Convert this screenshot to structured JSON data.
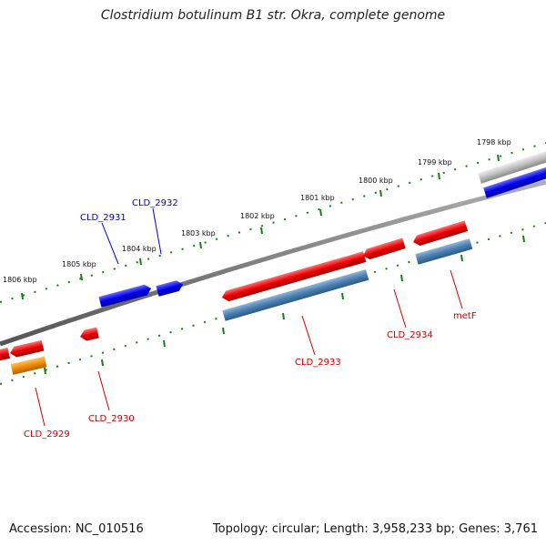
{
  "title": "Clostridium botulinum B1 str. Okra, complete genome",
  "footer": {
    "accession": "Accession: NC_010516",
    "summary": "Topology: circular; Length: 3,958,233 bp; Genes: 3,761"
  },
  "colors": {
    "backbone": "#808080",
    "ticks": "#1a7a1a",
    "gene_red": "#e60000",
    "gene_blue": "#0000e6",
    "gene_orange": "#f08c00",
    "gene_steel": "#4a7fb0",
    "gene_gray": "#c0c0c0",
    "label_red": "#cc0000",
    "label_blue": "#0000cc"
  },
  "scale_labels": [
    "1806 kbp",
    "1805 kbp",
    "1804 kbp",
    "1803 kbp",
    "1802 kbp",
    "1801 kbp",
    "1800 kbp",
    "1799 kbp",
    "1798 kbp"
  ],
  "gene_labels": [
    "CLD_2929",
    "CLD_2930",
    "CLD_2931",
    "CLD_2932",
    "CLD_2933",
    "CLD_2934",
    "metF"
  ]
}
